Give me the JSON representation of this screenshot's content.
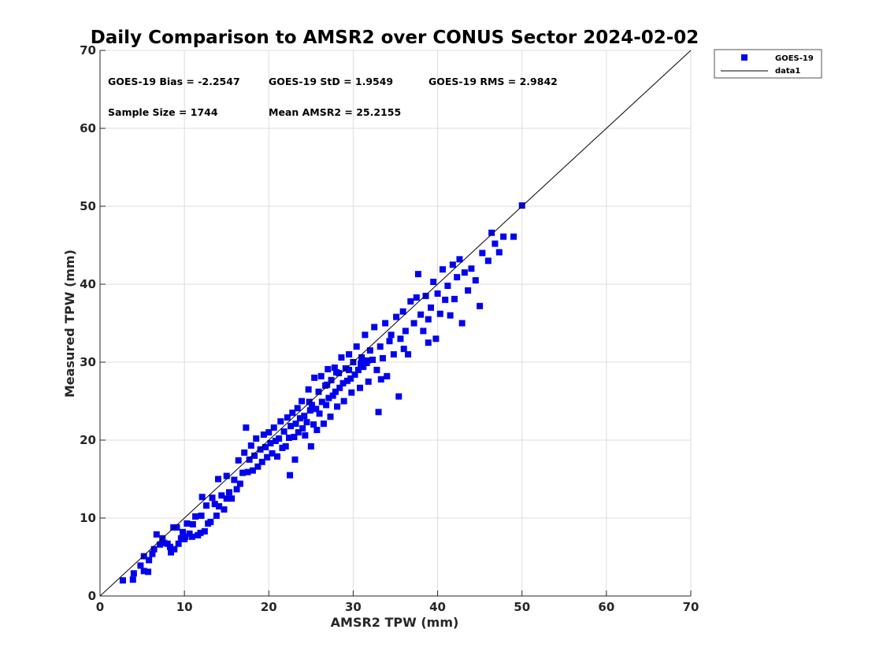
{
  "chart_data": {
    "type": "scatter",
    "title": "Daily Comparison to AMSR2 over CONUS Sector 2024-02-02",
    "xlabel": "AMSR2 TPW (mm)",
    "ylabel": "Measured TPW (mm)",
    "xlim": [
      0,
      70
    ],
    "ylim": [
      0,
      70
    ],
    "xticks": [
      0,
      10,
      20,
      30,
      40,
      50,
      60,
      70
    ],
    "yticks": [
      0,
      10,
      20,
      30,
      40,
      50,
      60,
      70
    ],
    "grid": true,
    "legend_position": "outside top-right",
    "colors": {
      "points": "#0000ee",
      "line": "#000000",
      "grid": "#dddddd"
    },
    "annotations": [
      "GOES-19 Bias = -2.2547",
      "GOES-19 StD = 1.9549",
      "GOES-19 RMS = 2.9842",
      "Sample Size = 1744",
      "Mean AMSR2 = 25.2155"
    ],
    "series": [
      {
        "name": "GOES-19",
        "kind": "scatter",
        "marker": "square",
        "points": [
          [
            2.7,
            2.0
          ],
          [
            3.9,
            2.1
          ],
          [
            4.0,
            2.9
          ],
          [
            4.8,
            3.9
          ],
          [
            5.2,
            3.2
          ],
          [
            5.7,
            3.1
          ],
          [
            5.2,
            5.1
          ],
          [
            5.8,
            4.6
          ],
          [
            6.2,
            5.4
          ],
          [
            6.4,
            6.0
          ],
          [
            6.7,
            7.9
          ],
          [
            7.1,
            6.6
          ],
          [
            7.4,
            7.4
          ],
          [
            7.6,
            6.8
          ],
          [
            8.0,
            6.7
          ],
          [
            8.3,
            6.3
          ],
          [
            8.4,
            5.6
          ],
          [
            8.7,
            8.8
          ],
          [
            8.8,
            6.0
          ],
          [
            9.1,
            8.8
          ],
          [
            9.3,
            6.7
          ],
          [
            9.6,
            7.4
          ],
          [
            9.8,
            8.2
          ],
          [
            10.0,
            7.3
          ],
          [
            10.1,
            7.6
          ],
          [
            10.3,
            9.3
          ],
          [
            10.6,
            8.0
          ],
          [
            10.9,
            7.6
          ],
          [
            11.0,
            9.2
          ],
          [
            11.3,
            10.2
          ],
          [
            11.6,
            7.8
          ],
          [
            11.9,
            8.1
          ],
          [
            12.0,
            10.3
          ],
          [
            12.1,
            12.7
          ],
          [
            12.4,
            8.3
          ],
          [
            12.6,
            11.6
          ],
          [
            12.8,
            9.3
          ],
          [
            13.1,
            9.5
          ],
          [
            13.3,
            12.6
          ],
          [
            13.6,
            11.8
          ],
          [
            13.8,
            10.3
          ],
          [
            14.0,
            15.0
          ],
          [
            14.1,
            11.5
          ],
          [
            14.4,
            12.9
          ],
          [
            14.7,
            11.1
          ],
          [
            15.0,
            12.5
          ],
          [
            15.0,
            15.4
          ],
          [
            15.3,
            13.3
          ],
          [
            15.6,
            12.5
          ],
          [
            15.9,
            14.9
          ],
          [
            16.2,
            13.7
          ],
          [
            16.4,
            17.4
          ],
          [
            16.6,
            14.4
          ],
          [
            16.9,
            15.8
          ],
          [
            17.1,
            18.4
          ],
          [
            17.3,
            21.6
          ],
          [
            17.5,
            15.9
          ],
          [
            17.7,
            17.5
          ],
          [
            17.9,
            19.3
          ],
          [
            18.1,
            16.1
          ],
          [
            18.3,
            18.0
          ],
          [
            18.5,
            20.2
          ],
          [
            18.7,
            16.6
          ],
          [
            19.0,
            18.8
          ],
          [
            19.2,
            17.2
          ],
          [
            19.4,
            20.7
          ],
          [
            19.6,
            19.1
          ],
          [
            19.8,
            17.8
          ],
          [
            20.0,
            21.0
          ],
          [
            20.2,
            19.6
          ],
          [
            20.4,
            18.3
          ],
          [
            20.6,
            21.6
          ],
          [
            20.8,
            19.9
          ],
          [
            21.0,
            17.9
          ],
          [
            21.2,
            20.2
          ],
          [
            21.4,
            22.4
          ],
          [
            21.6,
            19.0
          ],
          [
            21.8,
            21.1
          ],
          [
            22.0,
            19.2
          ],
          [
            22.2,
            22.9
          ],
          [
            22.4,
            20.3
          ],
          [
            22.5,
            15.5
          ],
          [
            22.6,
            21.8
          ],
          [
            22.8,
            23.5
          ],
          [
            23.0,
            20.4
          ],
          [
            23.1,
            17.5
          ],
          [
            23.2,
            22.1
          ],
          [
            23.4,
            24.1
          ],
          [
            23.5,
            21.0
          ],
          [
            23.7,
            22.8
          ],
          [
            23.9,
            25.0
          ],
          [
            24.0,
            21.5
          ],
          [
            24.2,
            23.1
          ],
          [
            24.3,
            20.6
          ],
          [
            24.5,
            22.3
          ],
          [
            24.7,
            26.5
          ],
          [
            24.9,
            23.8
          ],
          [
            25.0,
            19.2
          ],
          [
            25.1,
            24.5
          ],
          [
            25.3,
            22.0
          ],
          [
            25.4,
            28.0
          ],
          [
            25.6,
            24.0
          ],
          [
            25.7,
            21.3
          ],
          [
            25.9,
            26.2
          ],
          [
            26.0,
            23.4
          ],
          [
            26.2,
            28.2
          ],
          [
            26.3,
            24.9
          ],
          [
            26.5,
            22.1
          ],
          [
            26.7,
            27.0
          ],
          [
            26.8,
            24.5
          ],
          [
            27.0,
            29.1
          ],
          [
            27.1,
            25.4
          ],
          [
            27.3,
            23.0
          ],
          [
            27.4,
            27.7
          ],
          [
            27.6,
            25.7
          ],
          [
            27.8,
            29.3
          ],
          [
            27.9,
            26.2
          ],
          [
            28.1,
            24.3
          ],
          [
            28.3,
            28.6
          ],
          [
            28.4,
            26.7
          ],
          [
            28.6,
            30.6
          ],
          [
            28.8,
            27.3
          ],
          [
            28.9,
            25.0
          ],
          [
            29.1,
            29.2
          ],
          [
            29.3,
            27.6
          ],
          [
            29.5,
            31.0
          ],
          [
            29.7,
            27.9
          ],
          [
            29.8,
            26.1
          ],
          [
            30.0,
            30.0
          ],
          [
            30.2,
            28.4
          ],
          [
            30.4,
            32.0
          ],
          [
            30.6,
            29.0
          ],
          [
            30.8,
            26.7
          ],
          [
            31.0,
            30.6
          ],
          [
            31.2,
            29.4
          ],
          [
            31.4,
            33.5
          ],
          [
            31.6,
            29.9
          ],
          [
            31.8,
            27.5
          ],
          [
            32.0,
            31.5
          ],
          [
            32.3,
            30.3
          ],
          [
            32.5,
            34.5
          ],
          [
            32.8,
            29.0
          ],
          [
            33.0,
            23.6
          ],
          [
            33.2,
            32.0
          ],
          [
            33.5,
            30.5
          ],
          [
            33.8,
            35.0
          ],
          [
            34.0,
            28.2
          ],
          [
            34.3,
            32.7
          ],
          [
            34.5,
            33.5
          ],
          [
            34.8,
            31.0
          ],
          [
            35.1,
            35.8
          ],
          [
            35.4,
            25.6
          ],
          [
            35.6,
            33.0
          ],
          [
            35.9,
            36.5
          ],
          [
            36.2,
            34.0
          ],
          [
            36.5,
            31.0
          ],
          [
            36.8,
            37.8
          ],
          [
            37.2,
            35.0
          ],
          [
            37.5,
            38.3
          ],
          [
            37.7,
            41.3
          ],
          [
            38.0,
            36.1
          ],
          [
            38.3,
            34.0
          ],
          [
            38.6,
            38.5
          ],
          [
            38.9,
            35.5
          ],
          [
            39.2,
            37.0
          ],
          [
            39.5,
            40.3
          ],
          [
            39.8,
            33.0
          ],
          [
            40.0,
            38.8
          ],
          [
            40.3,
            36.2
          ],
          [
            40.6,
            41.9
          ],
          [
            40.9,
            38.0
          ],
          [
            41.2,
            39.8
          ],
          [
            41.5,
            36.0
          ],
          [
            41.8,
            42.5
          ],
          [
            42.0,
            38.1
          ],
          [
            42.3,
            40.9
          ],
          [
            42.6,
            43.2
          ],
          [
            42.9,
            35.0
          ],
          [
            43.2,
            41.5
          ],
          [
            43.6,
            39.2
          ],
          [
            44.0,
            42.0
          ],
          [
            44.5,
            40.5
          ],
          [
            45.0,
            37.2
          ],
          [
            45.3,
            44.0
          ],
          [
            46.0,
            43.0
          ],
          [
            46.4,
            46.6
          ],
          [
            46.8,
            45.2
          ],
          [
            47.3,
            44.1
          ],
          [
            47.8,
            46.1
          ],
          [
            49.0,
            46.1
          ],
          [
            50.0,
            50.1
          ],
          [
            36.0,
            31.7
          ],
          [
            38.9,
            32.5
          ],
          [
            33.3,
            27.8
          ],
          [
            31.7,
            30.2
          ],
          [
            30.9,
            29.8
          ],
          [
            29.5,
            29.0
          ],
          [
            28.0,
            28.7
          ],
          [
            26.9,
            27.1
          ],
          [
            24.8,
            24.9
          ]
        ]
      },
      {
        "name": "data1",
        "kind": "line",
        "points": [
          [
            0,
            0
          ],
          [
            70,
            70
          ]
        ]
      }
    ]
  }
}
